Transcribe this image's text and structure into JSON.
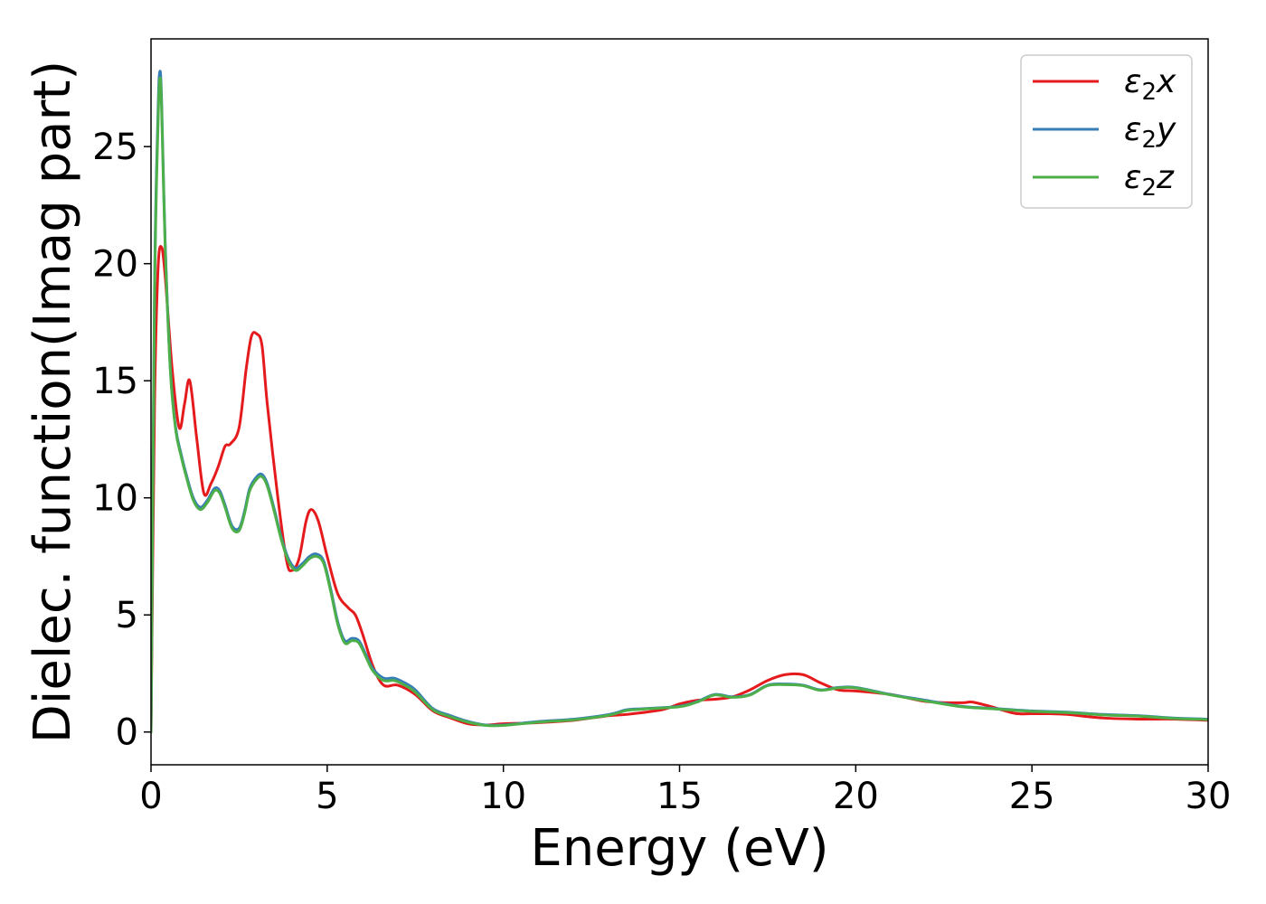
{
  "chart_data": {
    "type": "line",
    "title": "",
    "xlabel": "Energy (eV)",
    "ylabel": "Dielec. function(Imag part)",
    "xlim": [
      0,
      30
    ],
    "ylim": [
      -1.4,
      29.6
    ],
    "xticks": [
      0,
      5,
      10,
      15,
      20,
      25,
      30
    ],
    "yticks": [
      0,
      5,
      10,
      15,
      20,
      25
    ],
    "grid": false,
    "legend_position": "top-right",
    "series": [
      {
        "name": "ε₂x",
        "sub": "2",
        "suffix": "x",
        "color": "#e41a1c",
        "x": [
          0,
          0.1,
          0.2,
          0.3,
          0.4,
          0.6,
          0.8,
          0.95,
          1.1,
          1.3,
          1.5,
          1.7,
          1.9,
          2.1,
          2.25,
          2.5,
          2.7,
          2.85,
          3.0,
          3.15,
          3.3,
          3.6,
          3.85,
          4.0,
          4.2,
          4.4,
          4.55,
          4.75,
          5.0,
          5.3,
          5.6,
          5.8,
          6.0,
          6.3,
          6.6,
          7.0,
          7.5,
          8.0,
          8.5,
          9.0,
          9.5,
          10.0,
          11.0,
          12.0,
          13.0,
          13.5,
          14.5,
          15.0,
          15.5,
          16.0,
          16.5,
          17.0,
          17.5,
          18.0,
          18.5,
          19.0,
          19.5,
          20.0,
          21.0,
          22.0,
          23.0,
          23.3,
          23.8,
          24.5,
          25.0,
          25.5,
          26.0,
          27.0,
          28.0,
          29.0,
          30.0
        ],
        "y": [
          0,
          14,
          19.8,
          20.7,
          19.5,
          15.5,
          13.0,
          14.0,
          15.0,
          12.5,
          10.2,
          10.6,
          11.3,
          12.2,
          12.3,
          13.0,
          15.5,
          16.9,
          17.0,
          16.5,
          14.0,
          10.0,
          7.3,
          6.9,
          7.4,
          9.0,
          9.5,
          9.0,
          7.5,
          5.9,
          5.3,
          5.0,
          4.2,
          2.8,
          2.0,
          2.0,
          1.6,
          0.9,
          0.6,
          0.35,
          0.3,
          0.35,
          0.4,
          0.5,
          0.7,
          0.75,
          0.95,
          1.2,
          1.35,
          1.4,
          1.5,
          1.8,
          2.2,
          2.45,
          2.45,
          2.1,
          1.8,
          1.75,
          1.6,
          1.3,
          1.25,
          1.28,
          1.1,
          0.8,
          0.78,
          0.78,
          0.75,
          0.6,
          0.55,
          0.55,
          0.5
        ]
      },
      {
        "name": "ε₂y",
        "sub": "2",
        "suffix": "y",
        "color": "#377eb8",
        "x": [
          0,
          0.1,
          0.2,
          0.25,
          0.3,
          0.4,
          0.55,
          0.7,
          0.85,
          1.0,
          1.2,
          1.4,
          1.6,
          1.8,
          1.95,
          2.1,
          2.3,
          2.5,
          2.65,
          2.8,
          3.0,
          3.15,
          3.3,
          3.5,
          3.7,
          3.9,
          4.1,
          4.3,
          4.5,
          4.7,
          4.9,
          5.1,
          5.3,
          5.5,
          5.7,
          5.9,
          6.1,
          6.3,
          6.6,
          6.9,
          7.2,
          7.5,
          8.0,
          8.5,
          9.0,
          9.5,
          10.0,
          11.0,
          12.0,
          13.0,
          13.5,
          14.0,
          15.0,
          15.5,
          16.0,
          16.5,
          17.0,
          17.5,
          18.0,
          18.5,
          19.0,
          19.5,
          20.0,
          21.0,
          22.0,
          23.0,
          24.0,
          25.0,
          26.0,
          27.0,
          28.0,
          29.0,
          30.0
        ],
        "y": [
          0,
          19.0,
          26.5,
          28.2,
          27.0,
          21.0,
          15.5,
          13.0,
          11.9,
          11.0,
          10.0,
          9.6,
          9.9,
          10.4,
          10.3,
          9.7,
          8.8,
          8.7,
          9.4,
          10.4,
          10.9,
          11.0,
          10.6,
          9.5,
          8.3,
          7.4,
          7.0,
          7.2,
          7.5,
          7.6,
          7.3,
          6.1,
          4.7,
          3.9,
          4.0,
          3.9,
          3.3,
          2.7,
          2.3,
          2.3,
          2.1,
          1.8,
          1.0,
          0.7,
          0.45,
          0.3,
          0.3,
          0.45,
          0.55,
          0.75,
          0.95,
          1.0,
          1.1,
          1.3,
          1.6,
          1.5,
          1.6,
          2.0,
          2.05,
          2.0,
          1.8,
          1.9,
          1.9,
          1.6,
          1.35,
          1.1,
          1.0,
          0.9,
          0.85,
          0.75,
          0.7,
          0.6,
          0.55
        ]
      },
      {
        "name": "ε₂z",
        "sub": "2",
        "suffix": "z",
        "color": "#4daf4a",
        "x": [
          0,
          0.1,
          0.2,
          0.25,
          0.3,
          0.4,
          0.55,
          0.7,
          0.85,
          1.0,
          1.2,
          1.4,
          1.6,
          1.8,
          1.95,
          2.1,
          2.3,
          2.5,
          2.65,
          2.8,
          3.0,
          3.15,
          3.3,
          3.5,
          3.7,
          3.9,
          4.1,
          4.3,
          4.5,
          4.7,
          4.9,
          5.1,
          5.3,
          5.5,
          5.7,
          5.9,
          6.1,
          6.3,
          6.6,
          6.9,
          7.2,
          7.5,
          8.0,
          8.5,
          9.0,
          9.5,
          10.0,
          11.0,
          12.0,
          13.0,
          13.5,
          14.0,
          15.0,
          15.5,
          16.0,
          16.5,
          17.0,
          17.5,
          18.0,
          18.5,
          19.0,
          19.5,
          20.0,
          21.0,
          22.0,
          23.0,
          24.0,
          25.0,
          26.0,
          27.0,
          28.0,
          29.0,
          30.0
        ],
        "y": [
          0,
          18.5,
          26.0,
          27.9,
          26.7,
          20.8,
          15.4,
          12.9,
          11.8,
          10.9,
          9.9,
          9.5,
          9.8,
          10.3,
          10.2,
          9.6,
          8.7,
          8.6,
          9.3,
          10.3,
          10.8,
          10.9,
          10.5,
          9.4,
          8.2,
          7.3,
          6.9,
          7.1,
          7.4,
          7.5,
          7.2,
          6.0,
          4.6,
          3.8,
          3.9,
          3.8,
          3.2,
          2.6,
          2.2,
          2.2,
          2.0,
          1.7,
          0.95,
          0.65,
          0.42,
          0.28,
          0.28,
          0.42,
          0.52,
          0.72,
          0.92,
          0.98,
          1.08,
          1.28,
          1.58,
          1.48,
          1.58,
          1.98,
          2.02,
          1.98,
          1.78,
          1.88,
          1.88,
          1.58,
          1.32,
          1.08,
          0.98,
          0.88,
          0.83,
          0.73,
          0.68,
          0.58,
          0.53
        ]
      }
    ]
  }
}
